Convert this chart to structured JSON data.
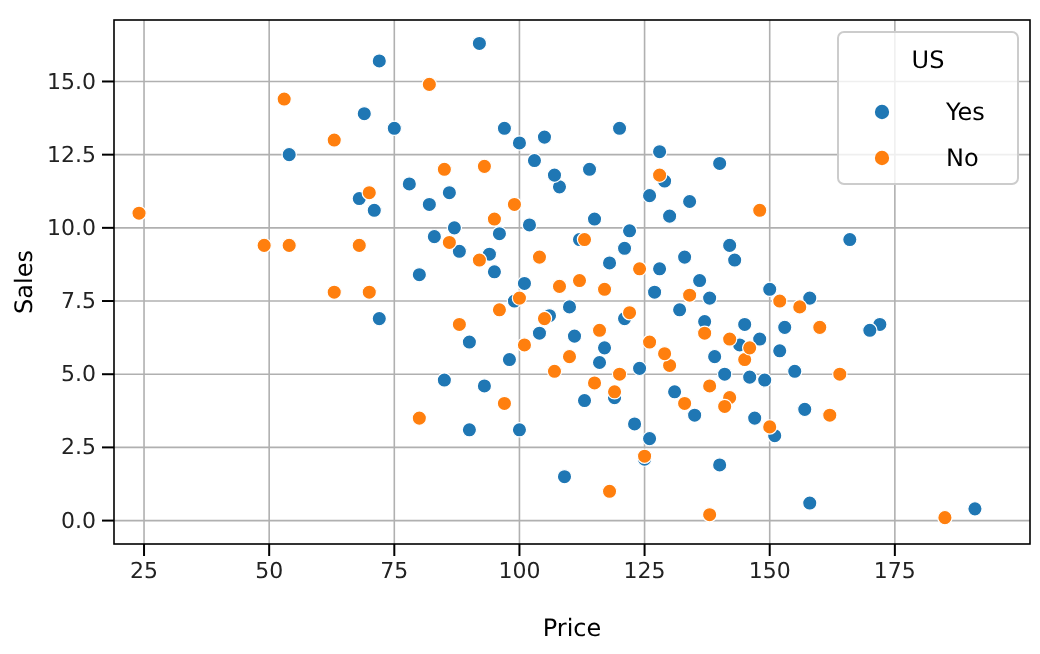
{
  "chart_data": {
    "type": "scatter",
    "xlabel": "Price",
    "ylabel": "Sales",
    "legend_title": "US",
    "legend": "top right",
    "grid": true,
    "marker": "circle",
    "xlim": [
      19,
      202
    ],
    "ylim": [
      -0.8,
      17.1
    ],
    "xticks": [
      25,
      50,
      75,
      100,
      125,
      150,
      175
    ],
    "yticks": [
      {
        "value": 0,
        "label": "0.0"
      },
      {
        "value": 2.5,
        "label": "2.5"
      },
      {
        "value": 5,
        "label": "5.0"
      },
      {
        "value": 7.5,
        "label": "7.5"
      },
      {
        "value": 10,
        "label": "10.0"
      },
      {
        "value": 12.5,
        "label": "12.5"
      },
      {
        "value": 15,
        "label": "15.0"
      }
    ],
    "series": [
      {
        "name": "Yes",
        "color": "#1f77b4",
        "x": [
          92,
          72,
          69,
          54,
          75,
          68,
          71,
          72,
          80,
          86,
          97,
          105,
          100,
          120,
          128,
          140,
          150,
          158,
          166,
          172,
          170,
          147,
          157,
          140,
          109,
          158,
          191,
          125,
          100,
          90,
          85,
          90,
          78,
          82,
          88,
          95,
          102,
          108,
          112,
          115,
          118,
          122,
          126,
          130,
          133,
          136,
          138,
          142,
          145,
          148,
          152,
          155,
          110,
          104,
          98,
          93,
          113,
          117,
          121,
          124,
          127,
          131,
          135,
          139,
          144,
          149,
          153,
          96,
          101,
          106,
          111,
          116,
          119,
          123,
          128,
          132,
          137,
          141,
          146,
          103,
          107,
          114,
          129,
          134,
          143,
          151,
          99,
          94,
          87,
          83,
          126,
          121
        ],
        "values": [
          16.3,
          15.7,
          13.9,
          12.5,
          13.4,
          11.0,
          10.6,
          6.9,
          8.4,
          11.2,
          13.4,
          13.1,
          12.9,
          13.4,
          12.6,
          12.2,
          7.9,
          7.6,
          9.6,
          6.7,
          6.5,
          3.5,
          3.8,
          1.9,
          1.5,
          0.6,
          0.4,
          2.1,
          3.1,
          3.1,
          4.8,
          6.1,
          11.5,
          10.8,
          9.2,
          8.5,
          10.1,
          11.4,
          9.6,
          10.3,
          8.8,
          9.9,
          11.1,
          10.4,
          9.0,
          8.2,
          7.6,
          9.4,
          6.7,
          6.2,
          5.8,
          5.1,
          7.3,
          6.4,
          5.5,
          4.6,
          4.1,
          5.9,
          6.9,
          5.2,
          7.8,
          4.4,
          3.6,
          5.6,
          6.0,
          4.8,
          6.6,
          9.8,
          8.1,
          7.0,
          6.3,
          5.4,
          4.2,
          3.3,
          8.6,
          7.2,
          6.8,
          5.0,
          4.9,
          12.3,
          11.8,
          12.0,
          11.6,
          10.9,
          8.9,
          2.9,
          7.5,
          9.1,
          10.0,
          9.7,
          2.8,
          9.3
        ]
      },
      {
        "name": "No",
        "color": "#ff7f0e",
        "x": [
          24,
          49,
          53,
          54,
          63,
          63,
          68,
          70,
          70,
          82,
          85,
          86,
          80,
          93,
          95,
          97,
          118,
          125,
          138,
          185,
          148,
          152,
          156,
          160,
          164,
          162,
          150,
          142,
          116,
          120,
          100,
          105,
          110,
          112,
          115,
          122,
          126,
          130,
          134,
          138,
          142,
          145,
          104,
          108,
          88,
          92,
          96,
          101,
          107,
          113,
          119,
          124,
          129,
          133,
          137,
          141,
          146,
          99,
          128,
          117
        ],
        "values": [
          10.5,
          9.4,
          14.4,
          9.4,
          13.0,
          7.8,
          9.4,
          11.2,
          7.8,
          14.9,
          12.0,
          9.5,
          3.5,
          12.1,
          10.3,
          4.0,
          1.0,
          2.2,
          0.2,
          0.1,
          10.6,
          7.5,
          7.3,
          6.6,
          5.0,
          3.6,
          3.2,
          4.2,
          6.5,
          5.0,
          7.6,
          6.9,
          5.6,
          8.2,
          4.7,
          7.1,
          6.1,
          5.3,
          7.7,
          4.6,
          6.2,
          5.5,
          9.0,
          8.0,
          6.7,
          8.9,
          7.2,
          6.0,
          5.1,
          9.6,
          4.4,
          8.6,
          5.7,
          4.0,
          6.4,
          3.9,
          5.9,
          10.8,
          11.8,
          7.9
        ]
      }
    ]
  }
}
